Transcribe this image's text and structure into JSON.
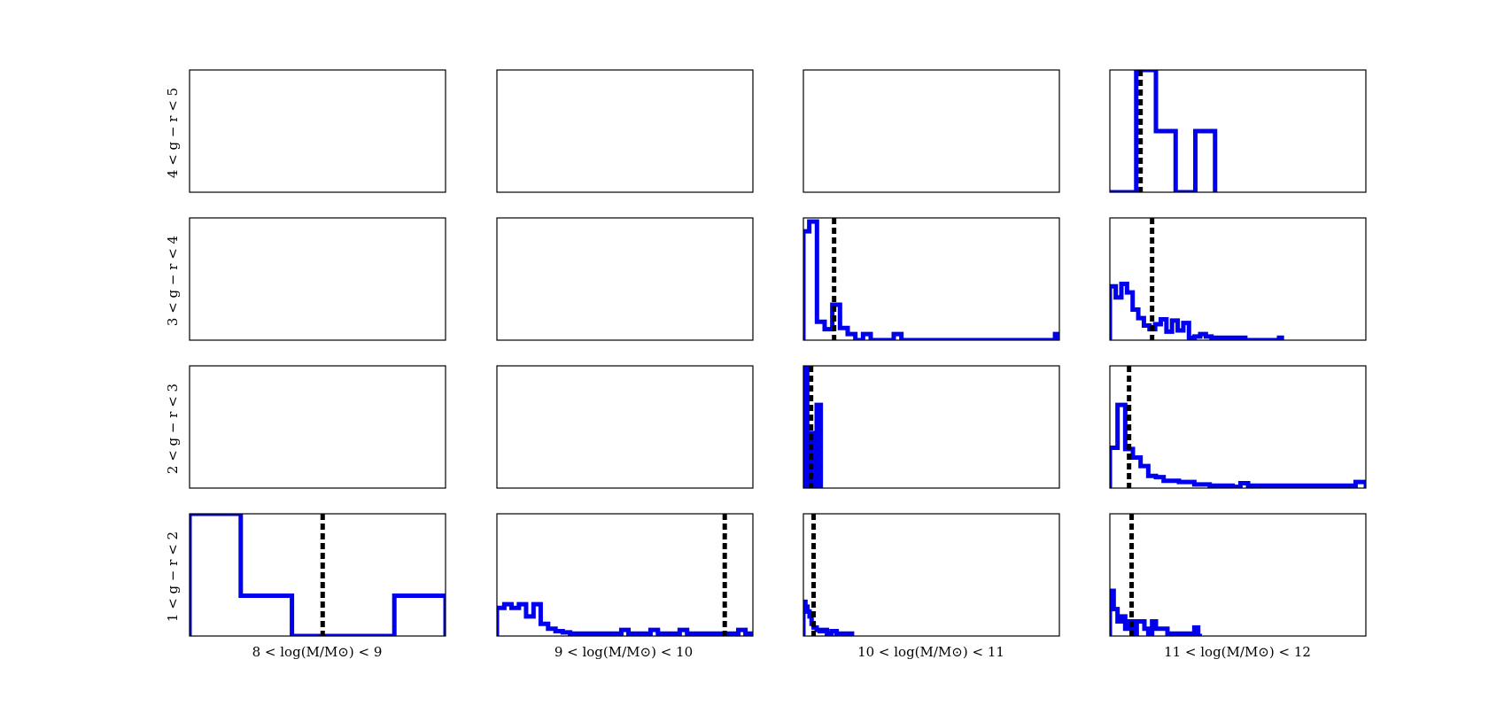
{
  "figure": {
    "series_color": "#0000ee",
    "median_color": "#000000"
  },
  "row_labels": [
    "4 < g − r < 5",
    "3 < g − r < 4",
    "2 < g − r < 3",
    "1 < g − r < 2"
  ],
  "col_labels": [
    "8 < log(M/M⊙) < 9",
    "9 < log(M/M⊙) < 10",
    "10 < log(M/M⊙) < 11",
    "11 < log(M/M⊙) < 12"
  ],
  "chart_data": [
    {
      "type": "histogram",
      "row": "4 < g − r < 5",
      "column": "8 < log(M/M⊙) < 9",
      "bins": [],
      "counts": [],
      "median": null,
      "xlim": [
        0,
        1
      ],
      "ylim": [
        0,
        1
      ]
    },
    {
      "type": "histogram",
      "row": "4 < g − r < 5",
      "column": "9 < log(M/M⊙) < 10",
      "bins": [],
      "counts": [],
      "median": null,
      "xlim": [
        0,
        1
      ],
      "ylim": [
        0,
        1
      ]
    },
    {
      "type": "histogram",
      "row": "4 < g − r < 5",
      "column": "10 < log(M/M⊙) < 11",
      "bins": [],
      "counts": [],
      "median": null,
      "xlim": [
        0,
        1
      ],
      "ylim": [
        0,
        1
      ]
    },
    {
      "type": "histogram",
      "row": "4 < g − r < 5",
      "column": "11 < log(M/M⊙) < 12",
      "bins": [
        0,
        0.103,
        0.18,
        0.257,
        0.334,
        0.411
      ],
      "counts": [
        0.0,
        1.0,
        0.5,
        0.0,
        0.5
      ],
      "median": 0.12,
      "xlim": [
        0,
        1
      ],
      "ylim": [
        0,
        1
      ]
    },
    {
      "type": "histogram",
      "row": "3 < g − r < 4",
      "column": "8 < log(M/M⊙) < 9",
      "bins": [],
      "counts": [],
      "median": null,
      "xlim": [
        0,
        1
      ],
      "ylim": [
        0,
        1
      ]
    },
    {
      "type": "histogram",
      "row": "3 < g − r < 4",
      "column": "9 < log(M/M⊙) < 10",
      "bins": [],
      "counts": [],
      "median": null,
      "xlim": [
        0,
        1
      ],
      "ylim": [
        0,
        1
      ]
    },
    {
      "type": "histogram",
      "row": "3 < g − r < 4",
      "column": "10 < log(M/M⊙) < 11",
      "bins": [
        0,
        0.023,
        0.053,
        0.083,
        0.113,
        0.143,
        0.173,
        0.203,
        0.233,
        0.263,
        0.293,
        0.323,
        0.353,
        0.383,
        0.413,
        0.443,
        0.473,
        0.503,
        0.533,
        0.563,
        0.593,
        0.623,
        0.653,
        0.683,
        0.713,
        0.743,
        0.773,
        0.803,
        0.833,
        0.863,
        0.893,
        0.923,
        0.953,
        0.983,
        1.0
      ],
      "counts": [
        0.89,
        0.97,
        0.15,
        0.09,
        0.29,
        0.1,
        0.05,
        0.0,
        0.05,
        0.0,
        0.0,
        0.0,
        0.05,
        0.0,
        0.0,
        0.0,
        0.0,
        0.0,
        0.0,
        0.0,
        0.0,
        0.0,
        0.0,
        0.0,
        0.0,
        0.0,
        0.0,
        0.0,
        0.0,
        0.0,
        0.0,
        0.0,
        0.0,
        0.05
      ],
      "median": 0.12,
      "xlim": [
        0,
        1
      ],
      "ylim": [
        0,
        1
      ]
    },
    {
      "type": "histogram",
      "row": "3 < g − r < 4",
      "column": "11 < log(M/M⊙) < 12",
      "bins": [
        0,
        0.023,
        0.045,
        0.067,
        0.089,
        0.111,
        0.133,
        0.155,
        0.177,
        0.199,
        0.221,
        0.243,
        0.265,
        0.287,
        0.309,
        0.331,
        0.353,
        0.375,
        0.397,
        0.419,
        0.441,
        0.463,
        0.485,
        0.507,
        0.529,
        0.551,
        0.573,
        0.595,
        0.617,
        0.639,
        0.661,
        0.672
      ],
      "counts": [
        0.44,
        0.35,
        0.46,
        0.39,
        0.25,
        0.18,
        0.12,
        0.09,
        0.13,
        0.17,
        0.07,
        0.16,
        0.08,
        0.14,
        0.02,
        0.03,
        0.05,
        0.03,
        0.02,
        0.02,
        0.02,
        0.02,
        0.02,
        0.02,
        0.0,
        0.0,
        0.0,
        0.0,
        0.0,
        0.0,
        0.02
      ],
      "median": 0.165,
      "xlim": [
        0,
        1
      ],
      "ylim": [
        0,
        1
      ]
    },
    {
      "type": "histogram",
      "row": "2 < g − r < 3",
      "column": "8 < log(M/M⊙) < 9",
      "bins": [],
      "counts": [],
      "median": null,
      "xlim": [
        0,
        1
      ],
      "ylim": [
        0,
        1
      ]
    },
    {
      "type": "histogram",
      "row": "2 < g − r < 3",
      "column": "9 < log(M/M⊙) < 10",
      "bins": [],
      "counts": [],
      "median": null,
      "xlim": [
        0,
        1
      ],
      "ylim": [
        0,
        1
      ]
    },
    {
      "type": "histogram",
      "row": "2 < g − r < 3",
      "column": "10 < log(M/M⊙) < 11",
      "bins": [
        0,
        0.015,
        0.025,
        0.04,
        0.052,
        0.068
      ],
      "counts": [
        1.0,
        0.0,
        0.45,
        0.0,
        0.68
      ],
      "median": 0.03,
      "xlim": [
        0,
        1
      ],
      "ylim": [
        0,
        1
      ]
    },
    {
      "type": "histogram",
      "row": "2 < g − r < 3",
      "column": "11 < log(M/M⊙) < 12",
      "bins": [
        0,
        0.03,
        0.06,
        0.09,
        0.12,
        0.15,
        0.18,
        0.21,
        0.24,
        0.27,
        0.3,
        0.33,
        0.36,
        0.39,
        0.42,
        0.45,
        0.48,
        0.51,
        0.54,
        0.57,
        0.6,
        0.63,
        0.66,
        0.69,
        0.72,
        0.75,
        0.78,
        0.81,
        0.84,
        0.87,
        0.9,
        0.93,
        0.96,
        1.0
      ],
      "counts": [
        0.33,
        0.68,
        0.32,
        0.25,
        0.18,
        0.1,
        0.09,
        0.06,
        0.06,
        0.05,
        0.05,
        0.03,
        0.03,
        0.02,
        0.02,
        0.02,
        0.01,
        0.04,
        0.02,
        0.02,
        0.02,
        0.02,
        0.02,
        0.02,
        0.02,
        0.02,
        0.02,
        0.02,
        0.02,
        0.02,
        0.02,
        0.02,
        0.05
      ],
      "median": 0.075,
      "xlim": [
        0,
        1
      ],
      "ylim": [
        0,
        1
      ]
    },
    {
      "type": "histogram",
      "row": "1 < g − r < 2",
      "column": "8 < log(M/M⊙) < 9",
      "bins": [
        0,
        0.2,
        0.4,
        0.6,
        0.8,
        1.0
      ],
      "counts": [
        1.0,
        0.33,
        0.0,
        0.0,
        0.33
      ],
      "median": 0.52,
      "xlim": [
        0,
        1
      ],
      "ylim": [
        0,
        1
      ]
    },
    {
      "type": "histogram",
      "row": "1 < g − r < 2",
      "column": "9 < log(M/M⊙) < 10",
      "bins": [
        0,
        0.029,
        0.057,
        0.086,
        0.114,
        0.143,
        0.171,
        0.2,
        0.229,
        0.257,
        0.286,
        0.314,
        0.343,
        0.371,
        0.4,
        0.429,
        0.457,
        0.486,
        0.514,
        0.543,
        0.571,
        0.6,
        0.629,
        0.657,
        0.686,
        0.714,
        0.743,
        0.771,
        0.8,
        0.829,
        0.857,
        0.886,
        0.914,
        0.943,
        0.971,
        1.0
      ],
      "counts": [
        0.23,
        0.26,
        0.23,
        0.26,
        0.16,
        0.26,
        0.1,
        0.06,
        0.04,
        0.03,
        0.02,
        0.02,
        0.02,
        0.02,
        0.02,
        0.02,
        0.02,
        0.05,
        0.02,
        0.02,
        0.02,
        0.05,
        0.02,
        0.02,
        0.02,
        0.05,
        0.02,
        0.02,
        0.02,
        0.02,
        0.02,
        0.02,
        0.02,
        0.05,
        0.02
      ],
      "median": 0.89,
      "xlim": [
        0,
        1
      ],
      "ylim": [
        0,
        1
      ]
    },
    {
      "type": "histogram",
      "row": "1 < g − r < 2",
      "column": "10 < log(M/M⊙) < 11",
      "bins": [
        0,
        0.008,
        0.016,
        0.024,
        0.032,
        0.04,
        0.052,
        0.064,
        0.078,
        0.092,
        0.11,
        0.13,
        0.15,
        0.17,
        0.19
      ],
      "counts": [
        0.28,
        0.24,
        0.2,
        0.16,
        0.1,
        0.07,
        0.05,
        0.04,
        0.05,
        0.02,
        0.04,
        0.02,
        0.02,
        0.02
      ],
      "median": 0.04,
      "xlim": [
        0,
        1
      ],
      "ylim": [
        0,
        1
      ]
    },
    {
      "type": "histogram",
      "row": "1 < g − r < 2",
      "column": "11 < log(M/M⊙) < 12",
      "bins": [
        0,
        0.015,
        0.03,
        0.045,
        0.06,
        0.075,
        0.09,
        0.105,
        0.12,
        0.135,
        0.15,
        0.165,
        0.18,
        0.195,
        0.21,
        0.225,
        0.24,
        0.255,
        0.27,
        0.285,
        0.3,
        0.315,
        0.33,
        0.345,
        0.36
      ],
      "counts": [
        0.37,
        0.22,
        0.12,
        0.16,
        0.06,
        0.12,
        0.0,
        0.12,
        0.12,
        0.06,
        0.02,
        0.12,
        0.06,
        0.06,
        0.06,
        0.02,
        0.02,
        0.02,
        0.02,
        0.02,
        0.02,
        0.02,
        0.07,
        0.0
      ],
      "median": 0.085,
      "xlim": [
        0,
        1
      ],
      "ylim": [
        0,
        1
      ]
    }
  ]
}
